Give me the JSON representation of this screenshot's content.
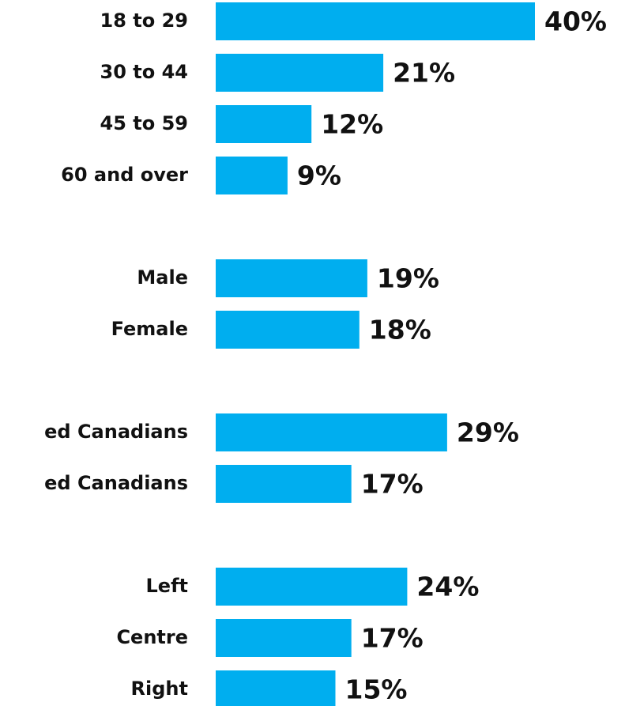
{
  "chart_data": [
    {
      "type": "bar",
      "color": "#00aeef",
      "categories": [
        "18 to 29",
        "30 to 44",
        "45 to 59",
        "60 and over"
      ],
      "values": [
        40,
        21,
        12,
        9
      ],
      "value_labels": [
        "40%",
        "21%",
        "12%",
        "9%"
      ]
    },
    {
      "type": "bar",
      "color": "#00aeef",
      "categories": [
        "Male",
        "Female"
      ],
      "values": [
        19,
        18
      ],
      "value_labels": [
        "19%",
        "18%"
      ]
    },
    {
      "type": "bar",
      "color": "#00aeef",
      "categories": [
        "ed Canadians",
        "ed Canadians"
      ],
      "values": [
        29,
        17
      ],
      "value_labels": [
        "29%",
        "17%"
      ]
    },
    {
      "type": "bar",
      "color": "#00aeef",
      "categories": [
        "Left",
        "Centre",
        "Right"
      ],
      "values": [
        24,
        17,
        15
      ],
      "value_labels": [
        "24%",
        "17%",
        "15%"
      ]
    }
  ]
}
